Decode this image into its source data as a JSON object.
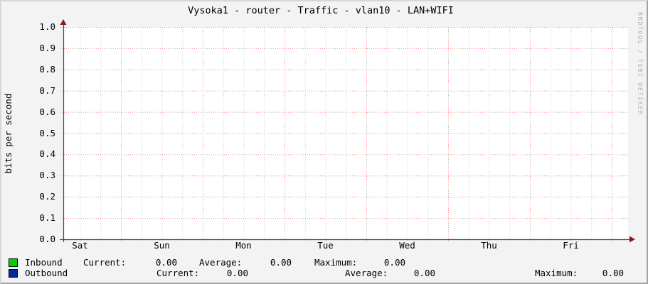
{
  "title": "Vysoka1 - router - Traffic - vlan10 - LAN+WIFI",
  "watermark": "RRDTOOL / TOBI OETIKER",
  "chart_data": {
    "type": "line",
    "title": "Vysoka1 - router - Traffic - vlan10 - LAN+WIFI",
    "xlabel": "",
    "ylabel": "bits per second",
    "ylim": [
      0.0,
      1.0
    ],
    "y_ticks": [
      "1.0",
      "0.9",
      "0.8",
      "0.7",
      "0.6",
      "0.5",
      "0.4",
      "0.3",
      "0.2",
      "0.1",
      "0.0"
    ],
    "categories": [
      "Sat",
      "Sun",
      "Mon",
      "Tue",
      "Wed",
      "Thu",
      "Fri"
    ],
    "series": [
      {
        "name": "Inbound",
        "color": "#00cf00",
        "values": [
          0,
          0,
          0,
          0,
          0,
          0,
          0
        ]
      },
      {
        "name": "Outbound",
        "color": "#002a97",
        "values": [
          0,
          0,
          0,
          0,
          0,
          0,
          0
        ]
      }
    ],
    "grid": true,
    "legend_position": "bottom"
  },
  "legend": {
    "rows": [
      {
        "name": "Inbound",
        "color": "#00cf00",
        "current_label": "Current:",
        "current": "0.00",
        "average_label": "Average:",
        "average": "0.00",
        "maximum_label": "Maximum:",
        "maximum": "0.00"
      },
      {
        "name": "Outbound",
        "color": "#002a97",
        "current_label": "Current:",
        "current": "0.00",
        "average_label": "Average:",
        "average": "0.00",
        "maximum_label": "Maximum:",
        "maximum": "0.00"
      }
    ]
  }
}
